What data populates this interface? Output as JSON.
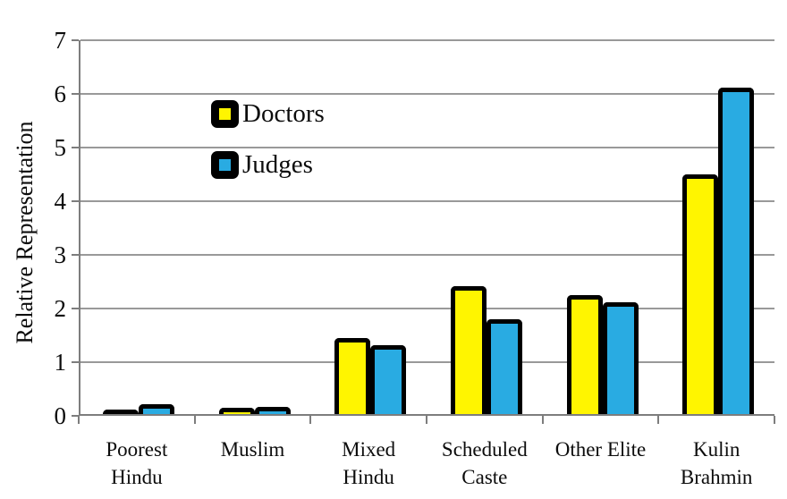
{
  "chart_data": {
    "type": "bar",
    "title": "",
    "xlabel": "",
    "ylabel": "Relative Representation",
    "ylim": [
      0,
      7
    ],
    "ytick_step": 1,
    "grid": true,
    "legend_position": "upper-left-inside",
    "categories": [
      "Poorest Hindu",
      "Muslim",
      "Mixed Hindu",
      "Scheduled Caste",
      "Other Elite",
      "Kulin Brahmin"
    ],
    "category_label_lines": [
      [
        "Poorest",
        "Hindu"
      ],
      [
        "Muslim"
      ],
      [
        "Mixed",
        "Hindu"
      ],
      [
        "Scheduled",
        "Caste"
      ],
      [
        "Other Elite"
      ],
      [
        "Kulin",
        "Brahmin"
      ]
    ],
    "series": [
      {
        "name": "Doctors",
        "color": "#FFF500",
        "values": [
          0.08,
          0.12,
          1.41,
          2.39,
          2.22,
          4.47
        ]
      },
      {
        "name": "Judges",
        "color": "#29ABE2",
        "values": [
          0.18,
          0.14,
          1.28,
          1.76,
          2.08,
          6.08
        ]
      }
    ],
    "bar_border_color": "#000000",
    "gridline_color": "#999999",
    "axis_color": "#7d7d7d"
  }
}
